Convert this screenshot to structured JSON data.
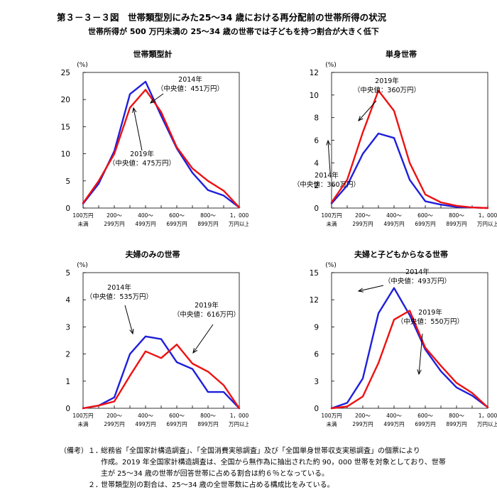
{
  "page": {
    "title": "第３－３－３図　世帯類型別にみた25～34 歳における再分配前の世帯所得の状況",
    "subtitle": "世帯所得が 500 万円未満の 25～34 歳の世帯では子どもを持つ割合が大きく低下"
  },
  "colors": {
    "series_2014": "#1f1fdc",
    "series_2019": "#ee1111"
  },
  "x_tick_labels": [
    [
      "100万円",
      "未満"
    ],
    [
      "200～",
      "299万円"
    ],
    [
      "400～",
      "499万円"
    ],
    [
      "600～",
      "699万円"
    ],
    [
      "800～",
      "899万円"
    ],
    [
      "1，000",
      "万円以上"
    ]
  ],
  "chart_data": [
    {
      "type": "line",
      "title": "世帯類型計",
      "ylabel": "(%)",
      "ylim": [
        0,
        25
      ],
      "yticks": [
        0,
        5,
        10,
        15,
        20,
        25
      ],
      "x": [
        0,
        1,
        2,
        3,
        4,
        5,
        6,
        7,
        8,
        9,
        10
      ],
      "series": [
        {
          "key": "2014",
          "values": [
            0.8,
            4.5,
            10.5,
            21.0,
            23.3,
            17.0,
            11.0,
            6.5,
            3.3,
            2.3,
            0.1
          ]
        },
        {
          "key": "2019",
          "values": [
            0.9,
            5.0,
            10.0,
            18.5,
            21.8,
            17.7,
            11.2,
            7.3,
            5.0,
            3.2,
            0.1
          ]
        }
      ],
      "annotations": [
        {
          "lines": [
            "2014年",
            "（中央値：451万円）"
          ]
        },
        {
          "lines": [
            "2019年",
            "（中央値：475万円）"
          ]
        }
      ]
    },
    {
      "type": "line",
      "title": "単身世帯",
      "ylabel": "(%)",
      "ylim": [
        0,
        12
      ],
      "yticks": [
        0,
        2,
        4,
        6,
        8,
        10,
        12
      ],
      "x": [
        0,
        1,
        2,
        3,
        4,
        5,
        6,
        7,
        8,
        9,
        10
      ],
      "series": [
        {
          "key": "2014",
          "values": [
            0.4,
            2.0,
            4.8,
            6.6,
            6.2,
            2.5,
            0.6,
            0.3,
            0.1,
            0.05,
            0.0
          ]
        },
        {
          "key": "2019",
          "values": [
            0.5,
            2.5,
            6.7,
            10.4,
            8.6,
            4.0,
            1.2,
            0.5,
            0.2,
            0.05,
            0.0
          ]
        }
      ],
      "annotations": [
        {
          "lines": [
            "2019年",
            "（中央値：360万円）"
          ]
        },
        {
          "lines": [
            "2014年",
            "（中央値：360万円）"
          ]
        }
      ]
    },
    {
      "type": "line",
      "title": "夫婦のみの世帯",
      "ylabel": "(%)",
      "ylim": [
        0,
        5
      ],
      "yticks": [
        0,
        1,
        2,
        3,
        4,
        5
      ],
      "x": [
        0,
        1,
        2,
        3,
        4,
        5,
        6,
        7,
        8,
        9,
        10
      ],
      "series": [
        {
          "key": "2014",
          "values": [
            0.0,
            0.1,
            0.4,
            2.0,
            2.65,
            2.55,
            1.7,
            1.45,
            0.6,
            0.6,
            0.0
          ]
        },
        {
          "key": "2019",
          "values": [
            0.0,
            0.1,
            0.25,
            1.2,
            2.1,
            1.85,
            2.35,
            1.65,
            1.35,
            0.85,
            0.0
          ]
        }
      ],
      "annotations": [
        {
          "lines": [
            "2014年",
            "（中央値：535万円）"
          ]
        },
        {
          "lines": [
            "2019年",
            "（中央値：616万円）"
          ]
        }
      ]
    },
    {
      "type": "line",
      "title": "夫婦と子どもからなる世帯",
      "ylabel": "(%)",
      "ylim": [
        0,
        15
      ],
      "yticks": [
        0,
        3,
        6,
        9,
        12,
        15
      ],
      "x": [
        0,
        1,
        2,
        3,
        4,
        5,
        6,
        7,
        8,
        9,
        10
      ],
      "series": [
        {
          "key": "2014",
          "values": [
            0.0,
            0.6,
            3.3,
            10.5,
            13.3,
            10.3,
            6.5,
            4.1,
            2.3,
            1.4,
            0.1
          ]
        },
        {
          "key": "2019",
          "values": [
            0.0,
            0.2,
            1.3,
            5.0,
            9.8,
            10.8,
            6.7,
            4.7,
            2.8,
            1.7,
            0.1
          ]
        }
      ],
      "annotations": [
        {
          "lines": [
            "2014年",
            "（中央値：493万円）"
          ]
        },
        {
          "lines": [
            "2019年",
            "（中央値：550万円）"
          ]
        }
      ]
    }
  ],
  "notes": {
    "head": "（備考）",
    "items": [
      {
        "num": "１．",
        "lines": [
          "総務省「全国家計構造調査」、「全国消費実態調査」及び「全国単身世帯収支実態調査」の個票により",
          "作成。2019 年全国家計構造調査は、全国から無作為に抽出された約 90，000 世帯を対象としており、世帯",
          "主が 25～34 歳の世帯が回答世帯に占める割合は約６％となっている。"
        ]
      },
      {
        "num": "２．",
        "lines": [
          "世帯類型別の割合は、25～34 歳の全世帯数に占める構成比をみている。"
        ]
      }
    ]
  }
}
